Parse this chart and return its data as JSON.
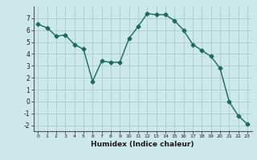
{
  "x": [
    0,
    1,
    2,
    3,
    4,
    5,
    6,
    7,
    8,
    9,
    10,
    11,
    12,
    13,
    14,
    15,
    16,
    17,
    18,
    19,
    20,
    21,
    22,
    23
  ],
  "y": [
    6.5,
    6.2,
    5.5,
    5.6,
    4.8,
    4.4,
    1.7,
    3.4,
    3.3,
    3.3,
    5.3,
    6.3,
    7.4,
    7.3,
    7.3,
    6.8,
    6.0,
    4.8,
    4.3,
    3.8,
    2.8,
    0.0,
    -1.2,
    -1.9
  ],
  "line_color": "#1a6b5a",
  "marker": "D",
  "marker_size": 2.5,
  "bg_color": "#cce8e8",
  "grid_color": "#aacccc",
  "xlabel": "Humidex (Indice chaleur)",
  "ylim": [
    -2.5,
    8.0
  ],
  "xlim": [
    -0.5,
    23.5
  ],
  "yticks": [
    -2,
    -1,
    0,
    1,
    2,
    3,
    4,
    5,
    6,
    7
  ],
  "xticks": [
    0,
    1,
    2,
    3,
    4,
    5,
    6,
    7,
    8,
    9,
    10,
    11,
    12,
    13,
    14,
    15,
    16,
    17,
    18,
    19,
    20,
    21,
    22,
    23
  ]
}
